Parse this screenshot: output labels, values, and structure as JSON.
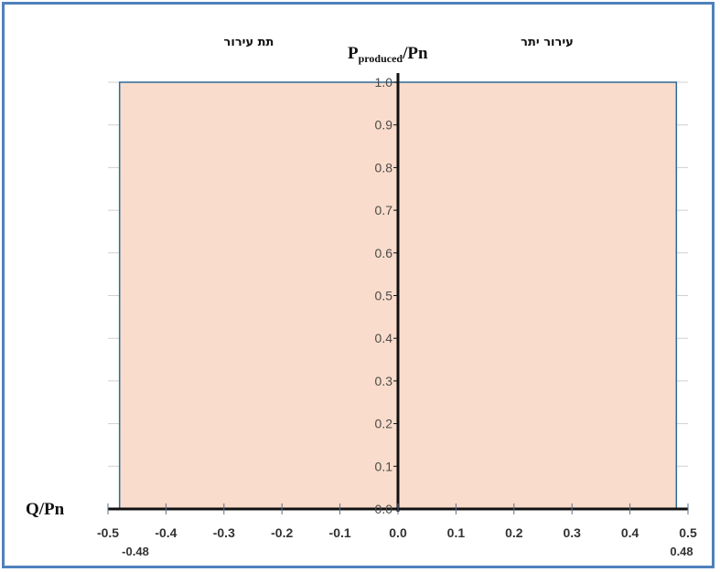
{
  "chart_data": {
    "type": "area",
    "title": "",
    "xlabel": "Q/Pn",
    "ylabel": {
      "main": "P",
      "subscript": "produced",
      "suffix": "/Pn"
    },
    "xlim": [
      -0.5,
      0.5
    ],
    "ylim": [
      0.0,
      1.0
    ],
    "x_ticks": [
      "-0.5",
      "-0.4",
      "-0.3",
      "-0.2",
      "-0.1",
      "0.0",
      "0.1",
      "0.2",
      "0.3",
      "0.4",
      "0.5"
    ],
    "x_tick_values": [
      -0.5,
      -0.4,
      -0.3,
      -0.2,
      -0.1,
      0.0,
      0.1,
      0.2,
      0.3,
      0.4,
      0.5
    ],
    "y_ticks": [
      "0.0",
      "0.1",
      "0.2",
      "0.3",
      "0.4",
      "0.5",
      "0.6",
      "0.7",
      "0.8",
      "0.9",
      "1.0"
    ],
    "y_tick_values": [
      0.0,
      0.1,
      0.2,
      0.3,
      0.4,
      0.5,
      0.6,
      0.7,
      0.8,
      0.9,
      1.0
    ],
    "region": {
      "x": [
        -0.48,
        0.48
      ],
      "y": [
        0.0,
        1.0
      ],
      "fill": "#f9dccb",
      "stroke": "#2e6a9a"
    },
    "limit_labels": [
      "-0.48",
      "0.48"
    ],
    "limit_values": [
      -0.48,
      0.48
    ],
    "region_labels": {
      "left": "תת עירור",
      "right": "עירור יתר"
    },
    "grid": "horizontal",
    "colors": {
      "frame": "#4f81bd",
      "axis": "#111111",
      "grid": "#d0d0d0"
    }
  }
}
